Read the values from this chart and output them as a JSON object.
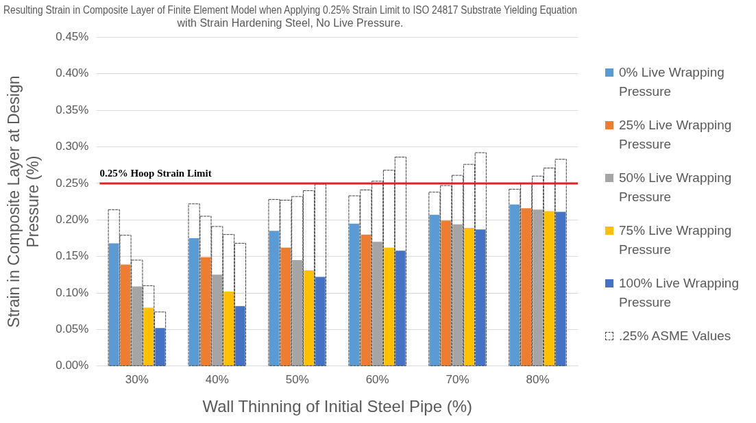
{
  "chart_data": {
    "type": "bar",
    "title": "Resulting Strain in Composite Layer of Finite Element Model when Applying 0.25% Strain Limit to ISO 24817 Substrate Yielding Equation with Strain Hardening Steel, No Live Pressure.",
    "xlabel": "Wall Thinning of Initial Steel Pipe (%)",
    "ylabel": "Strain in Composite Layer at Design Pressure (%)",
    "categories": [
      "30%",
      "40%",
      "50%",
      "60%",
      "70%",
      "80%"
    ],
    "series": [
      {
        "name": "0% Live Wrapping Pressure",
        "color": "#5b9bd5",
        "values": [
          0.168,
          0.175,
          0.185,
          0.195,
          0.207,
          0.221
        ]
      },
      {
        "name": "25% Live Wrapping Pressure",
        "color": "#ed7d31",
        "values": [
          0.139,
          0.149,
          0.162,
          0.18,
          0.199,
          0.216
        ]
      },
      {
        "name": "50% Live Wrapping Pressure",
        "color": "#a5a5a5",
        "values": [
          0.109,
          0.125,
          0.145,
          0.17,
          0.194,
          0.214
        ]
      },
      {
        "name": "75% Live Wrapping Pressure",
        "color": "#ffc000",
        "values": [
          0.08,
          0.102,
          0.131,
          0.162,
          0.189,
          0.212
        ]
      },
      {
        "name": "100% Live Wrapping Pressure",
        "color": "#4472c4",
        "values": [
          0.052,
          0.082,
          0.122,
          0.158,
          0.187,
          0.211
        ]
      },
      {
        "name": ".25% ASME Values",
        "color": "#404040",
        "line_style": "dashed",
        "values": [
          0.214,
          0.222,
          0.228,
          0.233,
          0.238,
          0.242
        ]
      },
      {
        "color": "#404040",
        "line_style": "dashed",
        "values": [
          0.179,
          0.205,
          0.227,
          0.241,
          0.247,
          0.25
        ]
      },
      {
        "color": "#404040",
        "line_style": "dashed",
        "values": [
          0.145,
          0.191,
          0.232,
          0.253,
          0.261,
          0.26
        ]
      },
      {
        "color": "#404040",
        "line_style": "dashed",
        "values": [
          0.11,
          0.18,
          0.24,
          0.268,
          0.276,
          0.271
        ]
      },
      {
        "color": "#404040",
        "line_style": "dashed",
        "values": [
          0.074,
          0.168,
          0.249,
          0.286,
          0.292,
          0.283
        ]
      }
    ],
    "ylim": [
      0,
      0.45
    ],
    "yticks": [
      {
        "value": 0,
        "label": "0.00%"
      },
      {
        "value": 0.05,
        "label": "0.05%"
      },
      {
        "value": 0.1,
        "label": "0.10%"
      },
      {
        "value": 0.15,
        "label": "0.15%"
      },
      {
        "value": 0.2,
        "label": "0.20%"
      },
      {
        "value": 0.25,
        "label": "0.25%"
      },
      {
        "value": 0.3,
        "label": "0.30%"
      },
      {
        "value": 0.35,
        "label": "0.35%"
      },
      {
        "value": 0.4,
        "label": "0.40%"
      },
      {
        "value": 0.45,
        "label": "0.45%"
      }
    ],
    "ref_lines": [
      {
        "axis": "y",
        "value": 0.25,
        "label": "0.25% Hoop Strain Limit",
        "color": "#e31e24"
      }
    ],
    "grid": "y",
    "legend": "right"
  }
}
